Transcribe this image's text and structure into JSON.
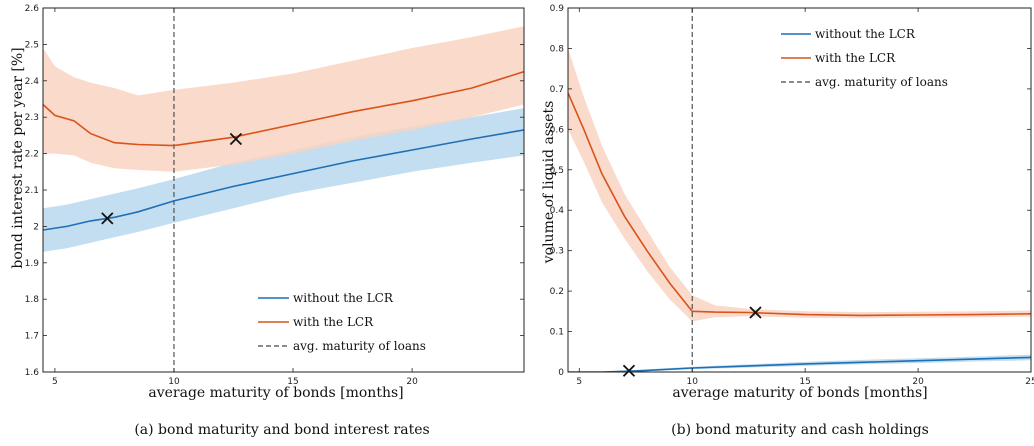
{
  "colors": {
    "without": "#1f6fb5",
    "with": "#d9541c",
    "without_band": "#b9d8ef",
    "with_band": "#f8d3c2",
    "marker": "#111111",
    "vline": "#444444"
  },
  "chart_data": [
    {
      "type": "line",
      "caption": "(a) bond maturity and bond interest rates",
      "xlabel": "average maturity of bonds [months]",
      "ylabel": "bond interest rate per year [%]",
      "xlim": [
        4.5,
        24.7
      ],
      "ylim": [
        1.6,
        2.6
      ],
      "xticks": [
        5,
        10,
        15,
        20
      ],
      "yticks": [
        1.6,
        1.7,
        1.8,
        1.9,
        2,
        2.1,
        2.2,
        2.3,
        2.4,
        2.5,
        2.6
      ],
      "ytick_labels": [
        "1.6",
        "1.7",
        "1.8",
        "1.9",
        "2",
        "2.1",
        "2.2",
        "2.3",
        "2.4",
        "2.5",
        "2.6"
      ],
      "grid": false,
      "legend_position": "bottom-right",
      "vline": {
        "x": 10,
        "name": "avg. maturity of loans"
      },
      "series": [
        {
          "name": "without the LCR",
          "x": [
            4.5,
            5.5,
            6.5,
            7.5,
            8.5,
            10,
            12.5,
            15,
            17.5,
            20,
            22.5,
            24.7
          ],
          "y": [
            1.99,
            2.0,
            2.015,
            2.025,
            2.04,
            2.07,
            2.11,
            2.145,
            2.18,
            2.21,
            2.24,
            2.265
          ],
          "lower": [
            1.93,
            1.94,
            1.955,
            1.97,
            1.985,
            2.01,
            2.05,
            2.09,
            2.12,
            2.15,
            2.175,
            2.195
          ],
          "upper": [
            2.05,
            2.06,
            2.075,
            2.09,
            2.105,
            2.13,
            2.175,
            2.21,
            2.245,
            2.275,
            2.3,
            2.325
          ],
          "marker": {
            "x": 7.2,
            "y": 2.022
          }
        },
        {
          "name": "with the LCR",
          "x": [
            4.5,
            5,
            5.8,
            6.5,
            7.5,
            8.5,
            10,
            12.5,
            15,
            17.5,
            20,
            22.5,
            24.7
          ],
          "y": [
            2.335,
            2.305,
            2.29,
            2.255,
            2.23,
            2.225,
            2.222,
            2.245,
            2.28,
            2.315,
            2.345,
            2.38,
            2.425
          ],
          "lower": [
            2.2,
            2.2,
            2.195,
            2.175,
            2.16,
            2.155,
            2.15,
            2.17,
            2.2,
            2.235,
            2.265,
            2.3,
            2.335
          ],
          "upper": [
            2.49,
            2.44,
            2.41,
            2.395,
            2.38,
            2.36,
            2.375,
            2.395,
            2.42,
            2.455,
            2.49,
            2.52,
            2.55
          ],
          "marker": {
            "x": 12.6,
            "y": 2.24
          }
        }
      ]
    },
    {
      "type": "line",
      "caption": "(b) bond maturity and cash holdings",
      "xlabel": "average maturity of bonds [months]",
      "ylabel": "volume of liquid assets",
      "xlim": [
        4.5,
        25
      ],
      "ylim": [
        0,
        0.9
      ],
      "xticks": [
        5,
        10,
        15,
        20,
        25
      ],
      "yticks": [
        0,
        0.1,
        0.2,
        0.3,
        0.4,
        0.5,
        0.6,
        0.7,
        0.8,
        0.9
      ],
      "ytick_labels": [
        "0",
        "0.1",
        "0.2",
        "0.3",
        "0.4",
        "0.5",
        "0.6",
        "0.7",
        "0.8",
        "0.9"
      ],
      "grid": false,
      "legend_position": "top-right",
      "vline": {
        "x": 10,
        "name": "avg. maturity of loans"
      },
      "series": [
        {
          "name": "without the LCR",
          "x": [
            4.5,
            6,
            7.2,
            8,
            10,
            12.5,
            15,
            17.5,
            20,
            22.5,
            25
          ],
          "y": [
            0,
            0,
            0.002,
            0.004,
            0.01,
            0.015,
            0.02,
            0.024,
            0.028,
            0.032,
            0.036
          ],
          "lower": [
            0,
            0,
            0,
            0.002,
            0.007,
            0.011,
            0.015,
            0.019,
            0.022,
            0.026,
            0.029
          ],
          "upper": [
            0,
            0.001,
            0.004,
            0.007,
            0.013,
            0.019,
            0.025,
            0.03,
            0.034,
            0.038,
            0.043
          ],
          "marker": {
            "x": 7.2,
            "y": 0.003
          }
        },
        {
          "name": "with the LCR",
          "x": [
            4.5,
            5.2,
            6,
            7,
            8,
            9,
            10,
            11,
            12.5,
            15,
            17.5,
            20,
            22.5,
            25
          ],
          "y": [
            0.69,
            0.6,
            0.49,
            0.385,
            0.3,
            0.22,
            0.15,
            0.148,
            0.147,
            0.142,
            0.14,
            0.141,
            0.142,
            0.144
          ],
          "lower": [
            0.6,
            0.52,
            0.42,
            0.33,
            0.25,
            0.18,
            0.125,
            0.135,
            0.138,
            0.134,
            0.133,
            0.134,
            0.135,
            0.137
          ],
          "upper": [
            0.8,
            0.68,
            0.56,
            0.44,
            0.35,
            0.26,
            0.19,
            0.165,
            0.156,
            0.15,
            0.148,
            0.149,
            0.15,
            0.152
          ],
          "marker": {
            "x": 12.8,
            "y": 0.147
          }
        }
      ]
    }
  ]
}
